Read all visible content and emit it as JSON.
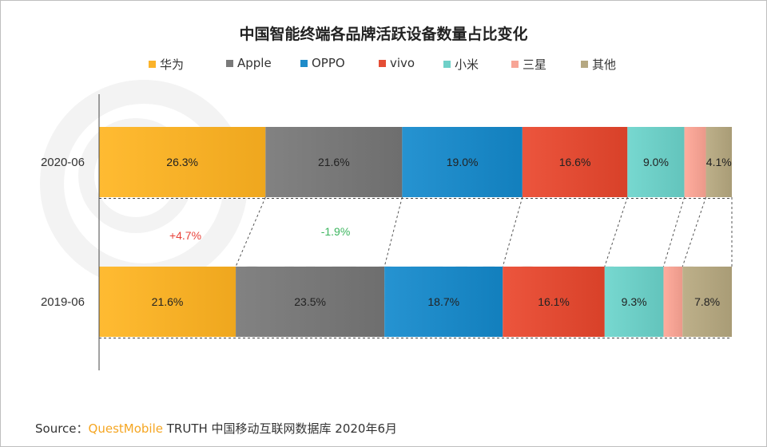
{
  "chart_data": {
    "type": "bar",
    "orientation": "horizontal",
    "stacked": "percent",
    "title": "中国智能终端各品牌活跃设备数量占比变化",
    "categories": [
      "2020-06",
      "2019-06"
    ],
    "series": [
      {
        "name": "华为",
        "values": [
          26.3,
          21.6
        ],
        "labels": [
          "26.3%",
          "21.6%"
        ],
        "color": "#fbb32a"
      },
      {
        "name": "Apple",
        "values": [
          21.6,
          23.5
        ],
        "labels": [
          "21.6%",
          "23.5%"
        ],
        "color": "#7a7a7a"
      },
      {
        "name": "OPPO",
        "values": [
          19.0,
          18.7
        ],
        "labels": [
          "19.0%",
          "18.7%"
        ],
        "color": "#1e8bc9"
      },
      {
        "name": "vivo",
        "values": [
          16.6,
          16.1
        ],
        "labels": [
          "16.6%",
          "16.1%"
        ],
        "color": "#e44d35"
      },
      {
        "name": "小米",
        "values": [
          9.0,
          9.3
        ],
        "labels": [
          "9.0%",
          "9.3%"
        ],
        "color": "#6fd0c8"
      },
      {
        "name": "三星",
        "values": [
          3.4,
          3.0
        ],
        "labels": [
          "",
          ""
        ],
        "color": "#f7a596"
      },
      {
        "name": "其他",
        "values": [
          4.1,
          7.8
        ],
        "labels": [
          "4.1%",
          "7.8%"
        ],
        "color": "#b5a882"
      }
    ],
    "change_annotations": [
      {
        "text": "+4.7%",
        "color": "#e8423a"
      },
      {
        "text": "-1.9%",
        "color": "#3cb55e"
      }
    ],
    "legend_position": "top",
    "xlim": [
      0,
      100
    ],
    "grid": false
  },
  "watermark": "QUESTMOBILE",
  "source": {
    "prefix": "Source：",
    "brand": "QuestMobile",
    "rest": " TRUTH 中国移动互联网数据库 2020年6月"
  }
}
